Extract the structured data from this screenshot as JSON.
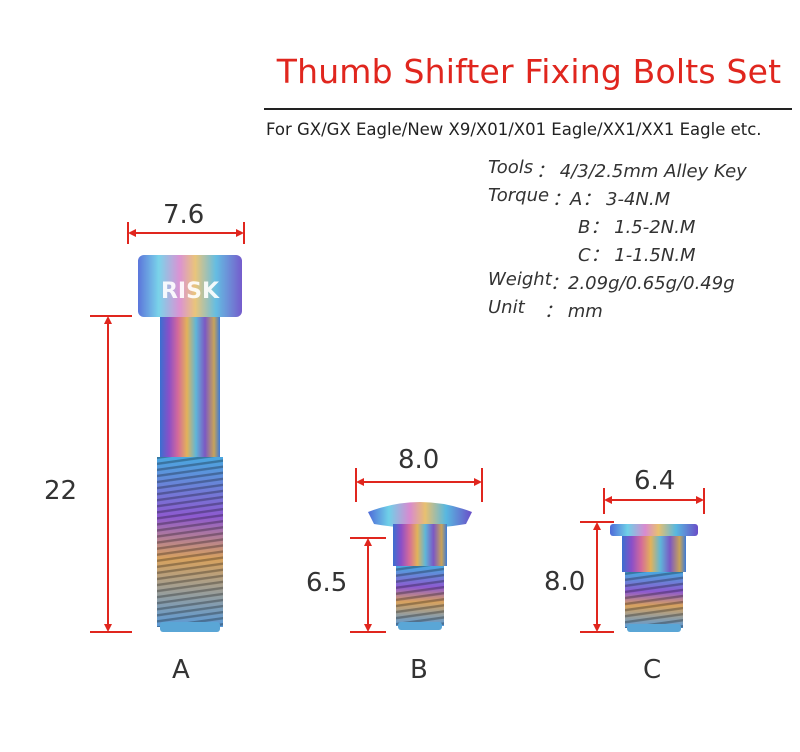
{
  "title": "Thumb Shifter Fixing Bolts Set",
  "subtitle": "For GX/GX Eagle/New X9/X01/X01 Eagle/XX1/XX1 Eagle etc.",
  "specs": {
    "tools_key": "Tools",
    "tools_val": "：  4/3/2.5mm Alley Key",
    "torque_key": "Torque",
    "torque_a": "：A：  3-4N.M",
    "torque_b": "B：  1.5-2N.M",
    "torque_c": "C：  1-1.5N.M",
    "weight_key": "Weight",
    "weight_val": "：2.09g/0.65g/0.49g",
    "unit_key": "Unit",
    "unit_val": "：  mm"
  },
  "bolts": {
    "a": {
      "letter": "A",
      "width": "7.6",
      "length": "22",
      "brand": "RISK"
    },
    "b": {
      "letter": "B",
      "width": "8.0",
      "length": "6.5"
    },
    "c": {
      "letter": "C",
      "width": "6.4",
      "length": "8.0"
    }
  },
  "colors": {
    "title": "#e0261e",
    "dimension": "#e0261e",
    "text": "#333333"
  }
}
